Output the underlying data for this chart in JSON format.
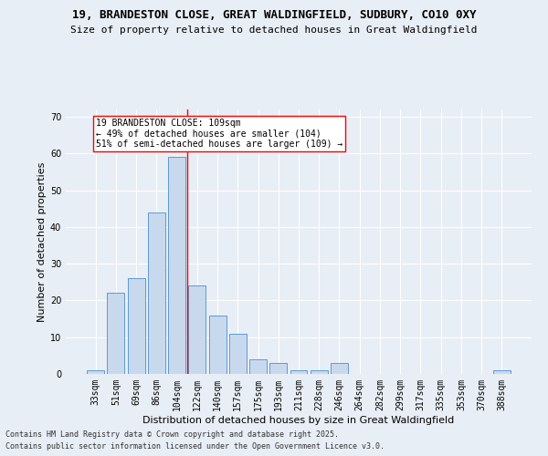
{
  "title_line1": "19, BRANDESTON CLOSE, GREAT WALDINGFIELD, SUDBURY, CO10 0XY",
  "title_line2": "Size of property relative to detached houses in Great Waldingfield",
  "xlabel": "Distribution of detached houses by size in Great Waldingfield",
  "ylabel": "Number of detached properties",
  "categories": [
    "33sqm",
    "51sqm",
    "69sqm",
    "86sqm",
    "104sqm",
    "122sqm",
    "140sqm",
    "157sqm",
    "175sqm",
    "193sqm",
    "211sqm",
    "228sqm",
    "246sqm",
    "264sqm",
    "282sqm",
    "299sqm",
    "317sqm",
    "335sqm",
    "353sqm",
    "370sqm",
    "388sqm"
  ],
  "values": [
    1,
    22,
    26,
    44,
    59,
    24,
    16,
    11,
    4,
    3,
    1,
    1,
    3,
    0,
    0,
    0,
    0,
    0,
    0,
    0,
    1
  ],
  "bar_color": "#c9d9ed",
  "bar_edge_color": "#5b9bd5",
  "vline_color": "red",
  "vline_x_index": 4,
  "annotation_text": "19 BRANDESTON CLOSE: 109sqm\n← 49% of detached houses are smaller (104)\n51% of semi-detached houses are larger (109) →",
  "annotation_box_color": "white",
  "annotation_box_edge": "red",
  "ylim": [
    0,
    72
  ],
  "yticks": [
    0,
    10,
    20,
    30,
    40,
    50,
    60,
    70
  ],
  "background_color": "#e8eef5",
  "footer_line1": "Contains HM Land Registry data © Crown copyright and database right 2025.",
  "footer_line2": "Contains public sector information licensed under the Open Government Licence v3.0.",
  "title_fontsize": 9,
  "subtitle_fontsize": 8,
  "axis_label_fontsize": 8,
  "tick_fontsize": 7,
  "annotation_fontsize": 7,
  "footer_fontsize": 6
}
